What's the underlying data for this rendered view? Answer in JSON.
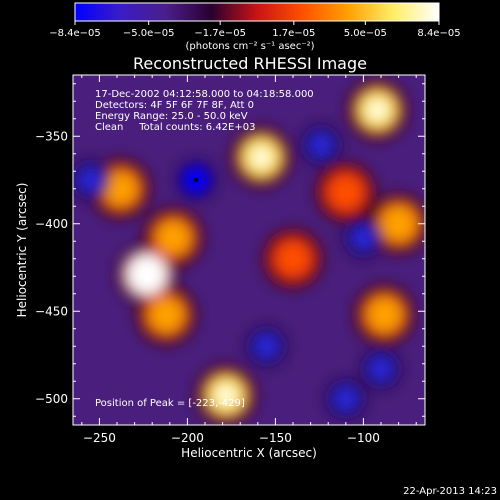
{
  "chart_data": {
    "type": "heatmap",
    "title": "Reconstructed RHESSI Image",
    "xlabel": "Heliocentric X (arcsec)",
    "ylabel": "Heliocentric Y (arcsec)",
    "xlim": [
      -265,
      -65
    ],
    "ylim": [
      -515,
      -315
    ],
    "x_ticks": [
      -250,
      -200,
      -150,
      -100
    ],
    "y_ticks": [
      -350,
      -400,
      -450,
      -500
    ],
    "x_tick_labels": [
      "−250",
      "−200",
      "−150",
      "−100"
    ],
    "y_tick_labels": [
      "−350",
      "−400",
      "−450",
      "−500"
    ],
    "colorbar": {
      "ticks": [
        -8.4e-05,
        -5e-05,
        -1.7e-05,
        1.7e-05,
        5e-05,
        8.4e-05
      ],
      "tick_labels": [
        "−8.4e−05",
        "−5.0e−05",
        "−1.7e−05",
        "1.7e−05",
        "5.0e−05",
        "8.4e−05"
      ],
      "range": [
        -8.4e-05,
        8.4e-05
      ],
      "units_label": "(photons cm⁻² s⁻¹ asec⁻²)",
      "colormap": [
        "#0000ff",
        "#3b1cc8",
        "#4a1e8a",
        "#2a0030",
        "#c81414",
        "#ff5000",
        "#ffa000",
        "#ffee66",
        "#ffffff"
      ]
    },
    "annotations": [
      "17-Dec-2002 04:12:58.000 to 04:18:58.000",
      "Detectors: 4F 5F 6F 7F 8F, Att 0",
      "Energy Range: 25.0 - 50.0 keV",
      "Clean     Total counts: 6.42E+03",
      "Position of Peak = [-223,-429]"
    ],
    "peak_position": [
      -223,
      -429
    ],
    "bright_sources": [
      {
        "x": -223,
        "y": -429,
        "value": 8.4e-05
      },
      {
        "x": -158,
        "y": -362,
        "value": 6.5e-05
      },
      {
        "x": -92,
        "y": -335,
        "value": 6e-05
      },
      {
        "x": -80,
        "y": -400,
        "value": 5.5e-05
      },
      {
        "x": -212,
        "y": -452,
        "value": 5e-05
      },
      {
        "x": -208,
        "y": -408,
        "value": 4.5e-05
      },
      {
        "x": -178,
        "y": -498,
        "value": 6e-05
      },
      {
        "x": -88,
        "y": -452,
        "value": 5e-05
      },
      {
        "x": -110,
        "y": -382,
        "value": 4e-05
      },
      {
        "x": -238,
        "y": -380,
        "value": 4.5e-05
      },
      {
        "x": -140,
        "y": -420,
        "value": 3.5e-05
      }
    ],
    "negative_sources": [
      {
        "x": -195,
        "y": -375,
        "value": -8.4e-05
      },
      {
        "x": -255,
        "y": -375,
        "value": -6e-05
      },
      {
        "x": -124,
        "y": -355,
        "value": -5e-05
      },
      {
        "x": -100,
        "y": -408,
        "value": -5e-05
      },
      {
        "x": -155,
        "y": -470,
        "value": -4.5e-05
      },
      {
        "x": -90,
        "y": -483,
        "value": -5e-05
      },
      {
        "x": -110,
        "y": -500,
        "value": -4.5e-05
      }
    ]
  },
  "footer": {
    "date": "22-Apr-2013 14:23"
  }
}
